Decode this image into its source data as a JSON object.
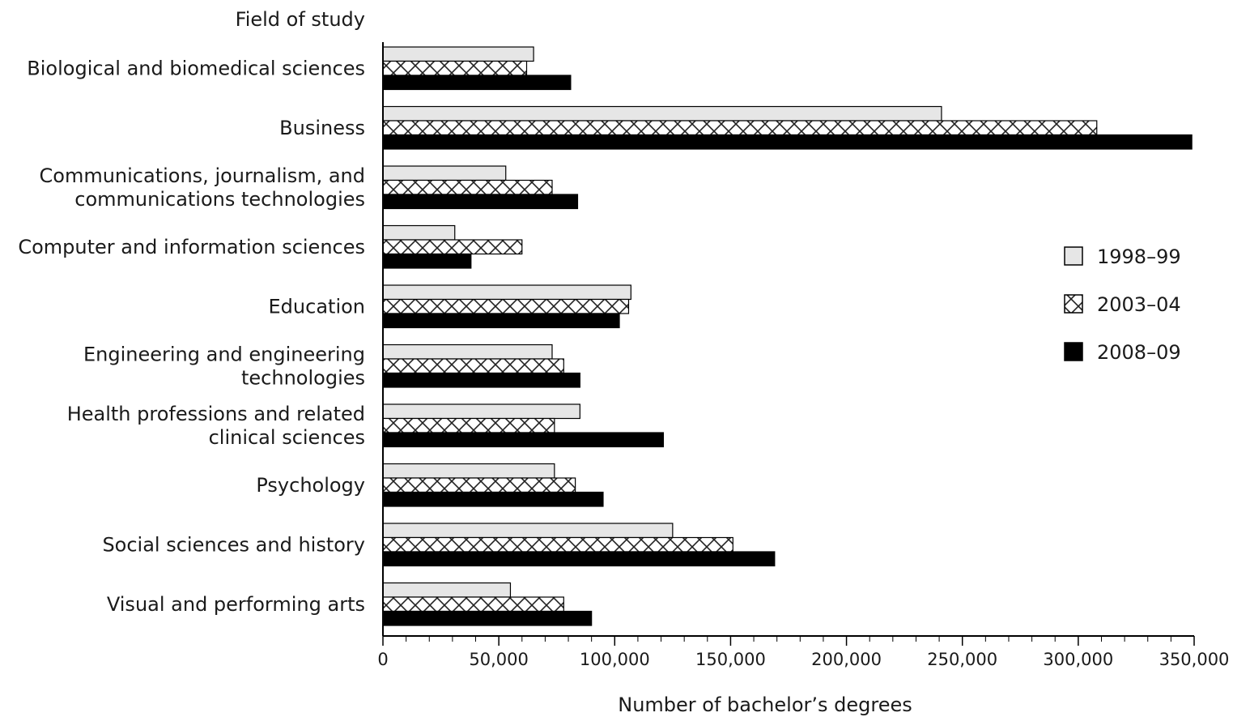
{
  "chart_data": {
    "type": "bar",
    "orientation": "horizontal",
    "y_title": "Field of study",
    "xlabel": "Number of bachelor’s degrees",
    "xlim": [
      0,
      350000
    ],
    "xticks": [
      0,
      50000,
      100000,
      150000,
      200000,
      250000,
      300000,
      350000
    ],
    "xtick_labels": [
      "0",
      "50,000",
      "100,000",
      "150,000",
      "200,000",
      "250,000",
      "300,000",
      "350,000"
    ],
    "grid": false,
    "legend_position": "right",
    "categories": [
      [
        "Biological and biomedical sciences"
      ],
      [
        "Business"
      ],
      [
        "Communications, journalism, and",
        "communications technologies"
      ],
      [
        "Computer and information sciences"
      ],
      [
        "Education"
      ],
      [
        "Engineering and engineering",
        "technologies"
      ],
      [
        "Health professions and related",
        "clinical sciences"
      ],
      [
        "Psychology"
      ],
      [
        "Social sciences and history"
      ],
      [
        "Visual and performing arts"
      ]
    ],
    "series": [
      {
        "name": "1998–99",
        "fill": "light-gray",
        "color": "#e6e6e6",
        "values": [
          65000,
          241000,
          53000,
          31000,
          107000,
          73000,
          85000,
          74000,
          125000,
          55000
        ]
      },
      {
        "name": "2003–04",
        "fill": "crosshatch",
        "color": "#ffffff",
        "values": [
          62000,
          308000,
          73000,
          60000,
          106000,
          78000,
          74000,
          83000,
          151000,
          78000
        ]
      },
      {
        "name": "2008–09",
        "fill": "black",
        "color": "#000000",
        "values": [
          81000,
          349000,
          84000,
          38000,
          102000,
          85000,
          121000,
          95000,
          169000,
          90000
        ]
      }
    ]
  }
}
